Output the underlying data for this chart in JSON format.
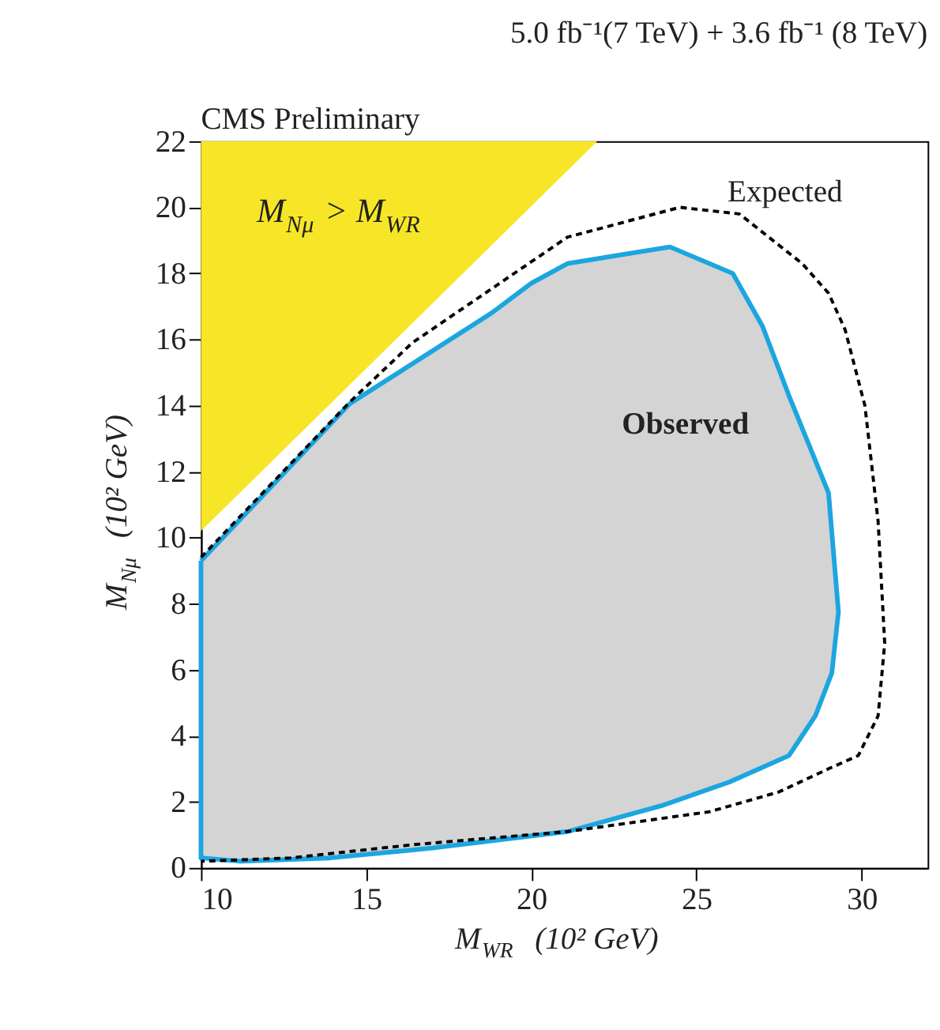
{
  "chart_data": {
    "type": "area",
    "title": "5.0  fb⁻¹(7 TeV) + 3.6 fb⁻¹ (8 TeV)",
    "xlabel": "M$_{WR}$  (10² GeV)",
    "ylabel": "M$_{Nμ}$  (10² GeV)",
    "annotations": [
      "CMS Preliminary",
      "M$_{Nμ}$ > M$_{WR}$"
    ],
    "xlim": [
      10,
      32
    ],
    "ylim": [
      0,
      22
    ],
    "xticks": [
      10,
      15,
      20,
      25,
      30
    ],
    "yticks": [
      0,
      2,
      4,
      6,
      8,
      10,
      12,
      14,
      16,
      18,
      20,
      22
    ],
    "grid": false,
    "series": [
      {
        "color": "#f7e627",
        "x": [
          10,
          10,
          22,
          10
        ],
        "values": [
          10.2,
          22,
          22,
          10.2
        ]
      },
      {
        "name": "Observed",
        "color": "#1ba6e0",
        "x": [
          10,
          14.5,
          18.8,
          20,
          21.1,
          24.2,
          26.1,
          27,
          27.8,
          29,
          29.3,
          29.1,
          28.6,
          27.8,
          26,
          24,
          21.1,
          17,
          13.9,
          11.2,
          10,
          10
        ],
        "values": [
          9.3,
          14.05,
          16.8,
          17.7,
          18.3,
          18.8,
          18,
          16.4,
          14.3,
          11.35,
          7.75,
          5.9,
          4.6,
          3.4,
          2.6,
          1.9,
          1.1,
          0.6,
          0.3,
          0.2,
          0.3,
          9.3
        ]
      },
      {
        "name": "Expected",
        "type": "line",
        "line_style": "dashed",
        "color": "#000000",
        "x": [
          10,
          14.5,
          16.4,
          21.1,
          24.5,
          26.3,
          28.2,
          29,
          29.5,
          30.1,
          30.5,
          30.7,
          30.5,
          29.9,
          29,
          27.5,
          25.4,
          21.1,
          16.4,
          12.7,
          10
        ],
        "values": [
          9.4,
          14.1,
          15.9,
          19.1,
          20,
          19.8,
          18.3,
          17.4,
          16.3,
          14,
          10.5,
          6.8,
          4.6,
          3.4,
          3,
          2.3,
          1.7,
          1.1,
          0.7,
          0.3,
          0.2
        ]
      }
    ]
  }
}
